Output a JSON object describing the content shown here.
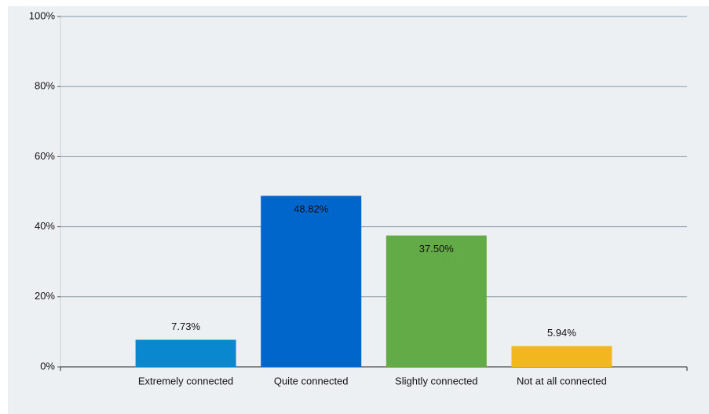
{
  "chart_data": {
    "type": "bar",
    "categories": [
      "Extremely connected",
      "Quite connected",
      "Slightly connected",
      "Not at all connected"
    ],
    "values": [
      7.73,
      48.82,
      37.5,
      5.94
    ],
    "value_labels": [
      "7.73%",
      "48.82%",
      "37.50%",
      "5.94%"
    ],
    "colors": [
      "#0a88cf",
      "#0066cc",
      "#62ab46",
      "#f2b71e"
    ],
    "ylim": [
      0,
      100
    ],
    "yticks": [
      {
        "value": 0,
        "label": "0%"
      },
      {
        "value": 20,
        "label": "20%"
      },
      {
        "value": 40,
        "label": "40%"
      },
      {
        "value": 60,
        "label": "60%"
      },
      {
        "value": 80,
        "label": "80%"
      },
      {
        "value": 100,
        "label": "100%"
      }
    ],
    "grid": true
  }
}
